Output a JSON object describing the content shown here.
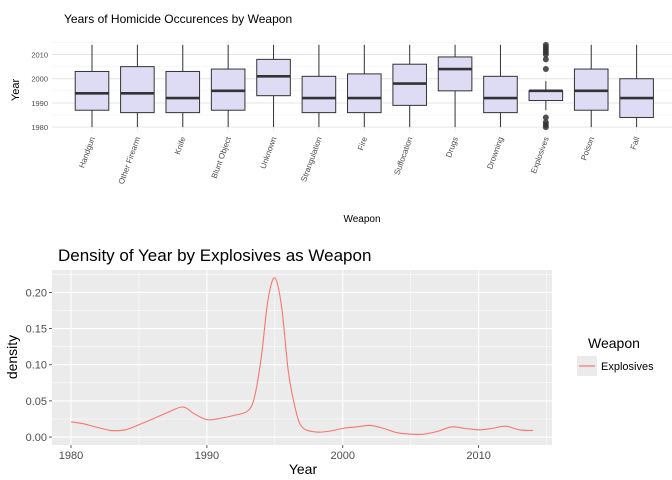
{
  "chart_data": [
    {
      "type": "box",
      "title": "Years of Homicide Occurences by Weapon",
      "xlabel": "Weapon",
      "ylabel": "Year",
      "ylim": [
        1978,
        2016
      ],
      "yticks": [
        1980,
        1990,
        2000,
        2010
      ],
      "grid": true,
      "box_fill": "#dedcf4",
      "categories": [
        "Handgun",
        "Other Firearm",
        "Knife",
        "Blunt Object",
        "Unknown",
        "Strangulation",
        "Fire",
        "Suffocation",
        "Drugs",
        "Drowning",
        "Explosives",
        "Poison",
        "Fall"
      ],
      "boxes": [
        {
          "min": 1980,
          "q1": 1987,
          "median": 1994,
          "q3": 2003,
          "max": 2014
        },
        {
          "min": 1980,
          "q1": 1986,
          "median": 1994,
          "q3": 2005,
          "max": 2014
        },
        {
          "min": 1980,
          "q1": 1986,
          "median": 1992,
          "q3": 2003,
          "max": 2014
        },
        {
          "min": 1980,
          "q1": 1987,
          "median": 1995,
          "q3": 2004,
          "max": 2014
        },
        {
          "min": 1980,
          "q1": 1993,
          "median": 2001,
          "q3": 2008,
          "max": 2014
        },
        {
          "min": 1980,
          "q1": 1986,
          "median": 1992,
          "q3": 2001,
          "max": 2014
        },
        {
          "min": 1980,
          "q1": 1986,
          "median": 1992,
          "q3": 2002,
          "max": 2014
        },
        {
          "min": 1980,
          "q1": 1989,
          "median": 1998,
          "q3": 2006,
          "max": 2014
        },
        {
          "min": 1980,
          "q1": 1995,
          "median": 2004,
          "q3": 2009,
          "max": 2014
        },
        {
          "min": 1980,
          "q1": 1986,
          "median": 1992,
          "q3": 2001,
          "max": 2014
        },
        {
          "min": 1987,
          "q1": 1991,
          "median": 1995,
          "q3": 1995,
          "max": 1999,
          "outliers": [
            1980,
            1981,
            1982,
            1984,
            2004,
            2008,
            2010,
            2011,
            2012,
            2013,
            2014
          ]
        },
        {
          "min": 1980,
          "q1": 1987,
          "median": 1995,
          "q3": 2004,
          "max": 2014
        },
        {
          "min": 1980,
          "q1": 1984,
          "median": 1992,
          "q3": 2000,
          "max": 2014
        }
      ]
    },
    {
      "type": "line",
      "title": "Density of Year by Explosives as Weapon",
      "xlabel": "Year",
      "ylabel": "density",
      "xlim": [
        1978.6,
        2015.4
      ],
      "ylim": [
        -0.011,
        0.231
      ],
      "xticks": [
        1980,
        1990,
        2000,
        2010
      ],
      "yticks": [
        0.0,
        0.05,
        0.1,
        0.15,
        0.2
      ],
      "ytick_labels": [
        "0.00",
        "0.05",
        "0.10",
        "0.15",
        "0.20"
      ],
      "grid": true,
      "legend": {
        "title": "Weapon",
        "position": "right"
      },
      "series": [
        {
          "name": "Explosives",
          "color": "#f8766d",
          "x": [
            1980,
            1981,
            1982,
            1983,
            1984,
            1985,
            1986,
            1987,
            1988,
            1988.5,
            1989,
            1990,
            1991,
            1992,
            1993,
            1993.5,
            1994,
            1994.5,
            1995,
            1995.5,
            1996,
            1996.5,
            1997,
            1998,
            1999,
            2000,
            2001,
            2002,
            2003,
            2004,
            2005,
            2006,
            2007,
            2008,
            2009,
            2010,
            2011,
            2012,
            2013,
            2014
          ],
          "y": [
            0.021,
            0.018,
            0.013,
            0.009,
            0.01,
            0.017,
            0.025,
            0.033,
            0.041,
            0.04,
            0.033,
            0.024,
            0.026,
            0.03,
            0.036,
            0.055,
            0.11,
            0.19,
            0.22,
            0.18,
            0.09,
            0.04,
            0.014,
            0.007,
            0.008,
            0.012,
            0.014,
            0.016,
            0.012,
            0.006,
            0.004,
            0.004,
            0.008,
            0.014,
            0.012,
            0.01,
            0.012,
            0.015,
            0.01,
            0.009
          ]
        }
      ]
    }
  ]
}
